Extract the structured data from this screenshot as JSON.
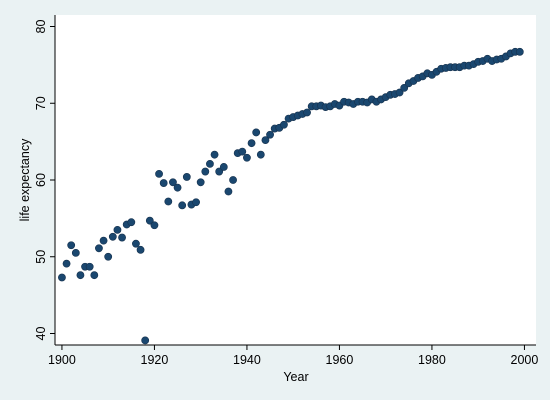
{
  "chart_data": {
    "type": "scatter",
    "xlabel": "Year",
    "ylabel": "life expectancy",
    "xlim": [
      1898.5,
      2002.5
    ],
    "ylim": [
      38.5,
      81.5
    ],
    "xticks": [
      1900,
      1920,
      1940,
      1960,
      1980,
      2000
    ],
    "yticks": [
      40,
      50,
      60,
      70,
      80
    ],
    "grid": false,
    "colors": {
      "background": "#eaf2f3",
      "plot_background": "#ffffff",
      "marker": "#1a476f"
    },
    "points": [
      [
        1900,
        47.3
      ],
      [
        1901,
        49.1
      ],
      [
        1902,
        51.5
      ],
      [
        1903,
        50.5
      ],
      [
        1904,
        47.6
      ],
      [
        1905,
        48.7
      ],
      [
        1906,
        48.7
      ],
      [
        1907,
        47.6
      ],
      [
        1908,
        51.1
      ],
      [
        1909,
        52.1
      ],
      [
        1910,
        50.0
      ],
      [
        1911,
        52.6
      ],
      [
        1912,
        53.5
      ],
      [
        1913,
        52.5
      ],
      [
        1914,
        54.2
      ],
      [
        1915,
        54.5
      ],
      [
        1916,
        51.7
      ],
      [
        1917,
        50.9
      ],
      [
        1918,
        39.1
      ],
      [
        1919,
        54.7
      ],
      [
        1920,
        54.1
      ],
      [
        1921,
        60.8
      ],
      [
        1922,
        59.6
      ],
      [
        1923,
        57.2
      ],
      [
        1924,
        59.7
      ],
      [
        1925,
        59.0
      ],
      [
        1926,
        56.7
      ],
      [
        1927,
        60.4
      ],
      [
        1928,
        56.8
      ],
      [
        1929,
        57.1
      ],
      [
        1930,
        59.7
      ],
      [
        1931,
        61.1
      ],
      [
        1932,
        62.1
      ],
      [
        1933,
        63.3
      ],
      [
        1934,
        61.1
      ],
      [
        1935,
        61.7
      ],
      [
        1936,
        58.5
      ],
      [
        1937,
        60.0
      ],
      [
        1938,
        63.5
      ],
      [
        1939,
        63.7
      ],
      [
        1940,
        62.9
      ],
      [
        1941,
        64.8
      ],
      [
        1942,
        66.2
      ],
      [
        1943,
        63.3
      ],
      [
        1944,
        65.2
      ],
      [
        1945,
        65.9
      ],
      [
        1946,
        66.7
      ],
      [
        1947,
        66.8
      ],
      [
        1948,
        67.2
      ],
      [
        1949,
        68.0
      ],
      [
        1950,
        68.2
      ],
      [
        1951,
        68.4
      ],
      [
        1952,
        68.6
      ],
      [
        1953,
        68.8
      ],
      [
        1954,
        69.6
      ],
      [
        1955,
        69.6
      ],
      [
        1956,
        69.7
      ],
      [
        1957,
        69.5
      ],
      [
        1958,
        69.6
      ],
      [
        1959,
        69.9
      ],
      [
        1960,
        69.7
      ],
      [
        1961,
        70.2
      ],
      [
        1962,
        70.1
      ],
      [
        1963,
        69.9
      ],
      [
        1964,
        70.2
      ],
      [
        1965,
        70.2
      ],
      [
        1966,
        70.1
      ],
      [
        1967,
        70.5
      ],
      [
        1968,
        70.2
      ],
      [
        1969,
        70.5
      ],
      [
        1970,
        70.8
      ],
      [
        1971,
        71.1
      ],
      [
        1972,
        71.2
      ],
      [
        1973,
        71.4
      ],
      [
        1974,
        72.0
      ],
      [
        1975,
        72.6
      ],
      [
        1976,
        72.9
      ],
      [
        1977,
        73.3
      ],
      [
        1978,
        73.5
      ],
      [
        1979,
        73.9
      ],
      [
        1980,
        73.7
      ],
      [
        1981,
        74.1
      ],
      [
        1982,
        74.5
      ],
      [
        1983,
        74.6
      ],
      [
        1984,
        74.7
      ],
      [
        1985,
        74.7
      ],
      [
        1986,
        74.7
      ],
      [
        1987,
        74.9
      ],
      [
        1988,
        74.9
      ],
      [
        1989,
        75.1
      ],
      [
        1990,
        75.4
      ],
      [
        1991,
        75.5
      ],
      [
        1992,
        75.8
      ],
      [
        1993,
        75.5
      ],
      [
        1994,
        75.7
      ],
      [
        1995,
        75.8
      ],
      [
        1996,
        76.1
      ],
      [
        1997,
        76.5
      ],
      [
        1998,
        76.7
      ],
      [
        1999,
        76.7
      ]
    ]
  }
}
